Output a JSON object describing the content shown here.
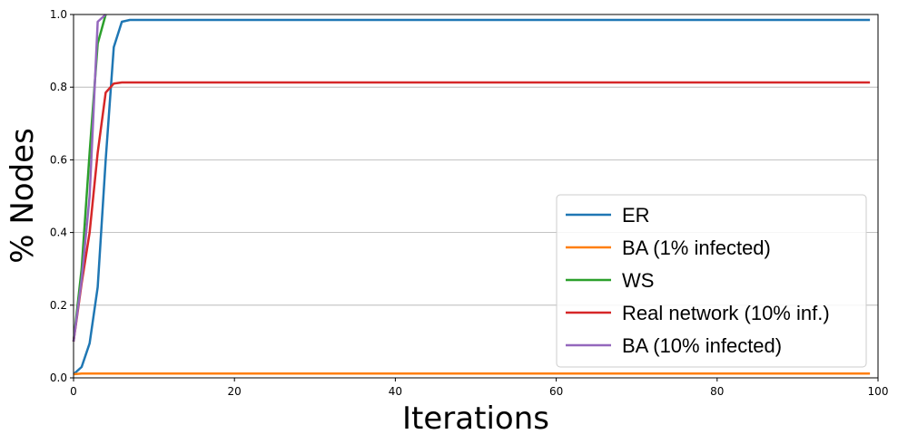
{
  "chart_data": {
    "type": "line",
    "xlabel": "Iterations",
    "ylabel": "% Nodes",
    "xlim": [
      0,
      100
    ],
    "ylim": [
      0.0,
      1.0
    ],
    "xticks": [
      "0",
      "20",
      "40",
      "60",
      "80",
      "100"
    ],
    "yticks": [
      "0.0",
      "0.2",
      "0.4",
      "0.6",
      "0.8",
      "1.0"
    ],
    "grid": "horizontal",
    "legend_position": "lower-right",
    "series": [
      {
        "name": "ER",
        "color": "#1f77b4",
        "x": [
          0,
          1,
          2,
          3,
          4,
          5,
          6,
          7,
          8,
          99
        ],
        "y": [
          0.01,
          0.03,
          0.095,
          0.25,
          0.6,
          0.91,
          0.98,
          0.985,
          0.985,
          0.985
        ]
      },
      {
        "name": "BA (1% infected)",
        "color": "#ff7f0e",
        "x": [
          0,
          1,
          99
        ],
        "y": [
          0.01,
          0.012,
          0.012
        ]
      },
      {
        "name": "WS",
        "color": "#2ca02c",
        "x": [
          0,
          1,
          2,
          3,
          4
        ],
        "y": [
          0.1,
          0.3,
          0.62,
          0.92,
          1.0
        ]
      },
      {
        "name": "Real network (10% inf.)",
        "color": "#d62728",
        "x": [
          0,
          1,
          2,
          3,
          4,
          5,
          6,
          99
        ],
        "y": [
          0.1,
          0.26,
          0.4,
          0.62,
          0.785,
          0.81,
          0.813,
          0.813
        ]
      },
      {
        "name": "BA (10% infected)",
        "color": "#9467bd",
        "x": [
          0,
          1,
          2,
          3,
          4
        ],
        "y": [
          0.1,
          0.27,
          0.5,
          0.98,
          1.0
        ]
      }
    ]
  }
}
